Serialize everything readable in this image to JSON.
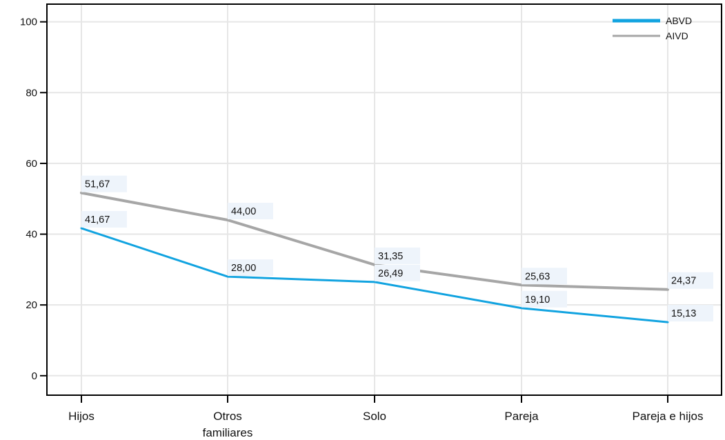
{
  "chart_data": {
    "type": "line",
    "categories": [
      "Hijos",
      "Otros\nfamiliares",
      "Solo",
      "Pareja",
      "Pareja e hijos"
    ],
    "series": [
      {
        "name": "ABVD",
        "values": [
          41.67,
          28.0,
          26.49,
          19.1,
          15.13
        ],
        "labels": [
          "41,67",
          "28,00",
          "26,49",
          "19,10",
          "15,13"
        ],
        "color": "#11a3e0"
      },
      {
        "name": "AIVD",
        "values": [
          51.67,
          44.0,
          31.35,
          25.63,
          24.37
        ],
        "labels": [
          "51,67",
          "44,00",
          "31,35",
          "25,63",
          "24,37"
        ],
        "color": "#a6a6a6"
      }
    ],
    "y_ticks": [
      0,
      20,
      40,
      60,
      80,
      100
    ],
    "y_tick_labels": [
      "0",
      "20",
      "40",
      "60",
      "80",
      "100"
    ],
    "ylim": [
      -5.5,
      105
    ],
    "grid": true,
    "legend_position": "top-right",
    "label_background": "#eef4fb"
  }
}
